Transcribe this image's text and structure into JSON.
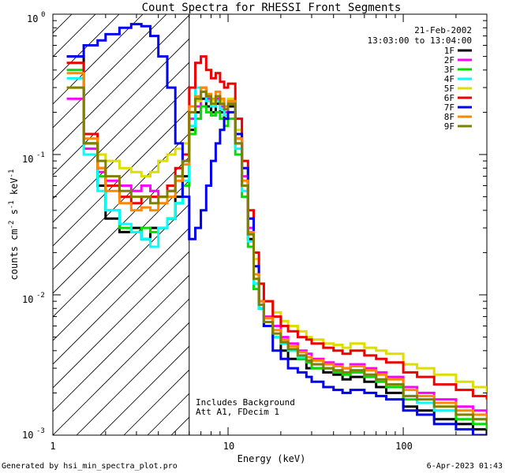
{
  "chart_data": {
    "type": "line",
    "title": "Count Spectra for RHESSI Front Segments",
    "xlabel": "Energy (keV)",
    "ylabel": "counts cm",
    "ylabel_parts": {
      "base": "counts cm",
      "e1": "-2",
      "s": " s",
      "e2": "-1",
      "kev": " keV",
      "e3": "-1"
    },
    "xscale": "log",
    "yscale": "log",
    "xlim": [
      1,
      300
    ],
    "ylim": [
      0.001,
      1
    ],
    "x_tick_labels": [
      "1",
      "10",
      "100"
    ],
    "y_tick_labels": [
      {
        "base": "10",
        "exp": "0"
      },
      {
        "base": "10",
        "exp": "-1"
      },
      {
        "base": "10",
        "exp": "-2"
      },
      {
        "base": "10",
        "exp": "-3"
      }
    ],
    "date": "21-Feb-2002",
    "time_range": "13:03:00 to 13:04:00",
    "legend_placement": "top-right",
    "annotation_lines": [
      "Includes Background",
      "Att A1, FDecim 1"
    ],
    "attenuator_threshold_kev": 6,
    "series": [
      {
        "name": "1F",
        "color": "#000000",
        "x": [
          1.2,
          1.5,
          1.8,
          2.0,
          2.4,
          2.8,
          3.2,
          3.6,
          4.0,
          4.5,
          5.0,
          5.5,
          6.0,
          6.5,
          7.0,
          7.5,
          8.0,
          8.5,
          9.0,
          9.5,
          10,
          11,
          12,
          13,
          14,
          15,
          16,
          18,
          20,
          22,
          25,
          28,
          30,
          35,
          40,
          45,
          50,
          60,
          70,
          80,
          100,
          120,
          150,
          200,
          250,
          300
        ],
        "y": [
          0.5,
          0.12,
          0.06,
          0.035,
          0.028,
          0.03,
          0.025,
          0.03,
          0.03,
          0.035,
          0.05,
          0.07,
          0.15,
          0.2,
          0.25,
          0.22,
          0.2,
          0.23,
          0.2,
          0.18,
          0.22,
          0.12,
          0.06,
          0.025,
          0.012,
          0.008,
          0.006,
          0.005,
          0.004,
          0.0035,
          0.0035,
          0.003,
          0.003,
          0.0028,
          0.0027,
          0.0025,
          0.0026,
          0.0024,
          0.0022,
          0.002,
          0.0016,
          0.0015,
          0.0013,
          0.0012,
          0.0011,
          0.001
        ]
      },
      {
        "name": "2F",
        "color": "#ff00ff",
        "x": [
          1.2,
          1.5,
          1.8,
          2.0,
          2.4,
          2.8,
          3.2,
          3.6,
          4.0,
          4.5,
          5.0,
          5.5,
          6.0,
          6.5,
          7.0,
          7.5,
          8.0,
          8.5,
          9.0,
          9.5,
          10,
          11,
          12,
          13,
          14,
          15,
          16,
          18,
          20,
          22,
          25,
          28,
          30,
          35,
          40,
          45,
          50,
          60,
          70,
          80,
          100,
          120,
          150,
          200,
          250,
          300
        ],
        "y": [
          0.25,
          0.11,
          0.075,
          0.065,
          0.06,
          0.055,
          0.06,
          0.055,
          0.05,
          0.055,
          0.07,
          0.09,
          0.18,
          0.22,
          0.3,
          0.25,
          0.22,
          0.25,
          0.22,
          0.2,
          0.24,
          0.13,
          0.07,
          0.03,
          0.014,
          0.009,
          0.007,
          0.006,
          0.005,
          0.0045,
          0.004,
          0.0038,
          0.0035,
          0.0033,
          0.0032,
          0.003,
          0.0032,
          0.003,
          0.0028,
          0.0026,
          0.0022,
          0.002,
          0.0018,
          0.0016,
          0.0015,
          0.0014
        ]
      },
      {
        "name": "3F",
        "color": "#00dd00",
        "x": [
          1.2,
          1.5,
          1.8,
          2.0,
          2.4,
          2.8,
          3.2,
          3.6,
          4.0,
          4.5,
          5.0,
          5.5,
          6.0,
          6.5,
          7.0,
          7.5,
          8.0,
          8.5,
          9.0,
          9.5,
          10,
          11,
          12,
          13,
          14,
          15,
          16,
          18,
          20,
          22,
          25,
          28,
          30,
          35,
          40,
          45,
          50,
          60,
          70,
          80,
          100,
          120,
          150,
          200,
          250,
          300
        ],
        "y": [
          0.4,
          0.12,
          0.07,
          0.04,
          0.03,
          0.028,
          0.03,
          0.028,
          0.03,
          0.035,
          0.045,
          0.06,
          0.14,
          0.18,
          0.22,
          0.2,
          0.19,
          0.2,
          0.18,
          0.16,
          0.18,
          0.1,
          0.05,
          0.022,
          0.011,
          0.008,
          0.006,
          0.005,
          0.0045,
          0.004,
          0.0035,
          0.0033,
          0.003,
          0.003,
          0.0028,
          0.0027,
          0.0028,
          0.0026,
          0.0024,
          0.0022,
          0.0018,
          0.0017,
          0.0015,
          0.0013,
          0.0012,
          0.0011
        ]
      },
      {
        "name": "4F",
        "color": "#00ffff",
        "x": [
          1.2,
          1.5,
          1.8,
          2.0,
          2.4,
          2.8,
          3.2,
          3.6,
          4.0,
          4.5,
          5.0,
          5.5,
          6.0,
          6.5,
          7.0,
          7.5,
          8.0,
          8.5,
          9.0,
          9.5,
          10,
          11,
          12,
          13,
          14,
          15,
          16,
          18,
          20,
          22,
          25,
          28,
          30,
          35,
          40,
          45,
          50,
          60,
          70,
          80,
          100,
          120,
          150,
          200,
          250,
          300
        ],
        "y": [
          0.35,
          0.1,
          0.055,
          0.04,
          0.032,
          0.028,
          0.025,
          0.022,
          0.03,
          0.035,
          0.045,
          0.065,
          0.16,
          0.3,
          0.28,
          0.24,
          0.22,
          0.24,
          0.21,
          0.19,
          0.2,
          0.11,
          0.055,
          0.024,
          0.012,
          0.008,
          0.006,
          0.005,
          0.0045,
          0.004,
          0.0036,
          0.0034,
          0.0032,
          0.003,
          0.0029,
          0.0028,
          0.0029,
          0.0027,
          0.0025,
          0.0023,
          0.0019,
          0.0017,
          0.0015,
          0.0014,
          0.0013,
          0.0012
        ]
      },
      {
        "name": "5F",
        "color": "#dddd00",
        "x": [
          1.2,
          1.5,
          1.8,
          2.0,
          2.4,
          2.8,
          3.2,
          3.6,
          4.0,
          4.5,
          5.0,
          5.5,
          6.0,
          6.5,
          7.0,
          7.5,
          8.0,
          8.5,
          9.0,
          9.5,
          10,
          11,
          12,
          13,
          14,
          15,
          16,
          18,
          20,
          22,
          25,
          28,
          30,
          35,
          40,
          45,
          50,
          60,
          70,
          80,
          100,
          120,
          150,
          200,
          250,
          300
        ],
        "y": [
          0.3,
          0.14,
          0.1,
          0.09,
          0.08,
          0.075,
          0.07,
          0.075,
          0.09,
          0.1,
          0.11,
          0.12,
          0.2,
          0.24,
          0.28,
          0.26,
          0.24,
          0.26,
          0.24,
          0.22,
          0.25,
          0.15,
          0.08,
          0.035,
          0.018,
          0.012,
          0.009,
          0.0075,
          0.0065,
          0.006,
          0.0055,
          0.005,
          0.0048,
          0.0045,
          0.0044,
          0.0042,
          0.0045,
          0.0042,
          0.004,
          0.0038,
          0.0032,
          0.003,
          0.0027,
          0.0024,
          0.0022,
          0.002
        ]
      },
      {
        "name": "6F",
        "color": "#ee0000",
        "x": [
          1.2,
          1.5,
          1.8,
          2.0,
          2.4,
          2.8,
          3.2,
          3.6,
          4.0,
          4.5,
          5.0,
          5.5,
          6.0,
          6.5,
          7.0,
          7.5,
          8.0,
          8.5,
          9.0,
          9.5,
          10,
          11,
          12,
          13,
          14,
          15,
          16,
          18,
          20,
          22,
          25,
          28,
          30,
          35,
          40,
          45,
          50,
          60,
          70,
          80,
          100,
          120,
          150,
          200,
          250,
          300
        ],
        "y": [
          0.45,
          0.14,
          0.08,
          0.06,
          0.05,
          0.045,
          0.05,
          0.05,
          0.05,
          0.06,
          0.08,
          0.1,
          0.3,
          0.45,
          0.5,
          0.4,
          0.35,
          0.38,
          0.33,
          0.3,
          0.32,
          0.18,
          0.09,
          0.04,
          0.02,
          0.012,
          0.009,
          0.007,
          0.006,
          0.0055,
          0.005,
          0.0048,
          0.0045,
          0.0042,
          0.004,
          0.0038,
          0.004,
          0.0037,
          0.0035,
          0.0033,
          0.0028,
          0.0026,
          0.0023,
          0.0021,
          0.0019,
          0.0018
        ]
      },
      {
        "name": "7F",
        "color": "#0000ee",
        "x": [
          1.2,
          1.5,
          1.8,
          2.0,
          2.4,
          2.8,
          3.2,
          3.6,
          4.0,
          4.5,
          5.0,
          5.5,
          6.0,
          6.5,
          7.0,
          7.5,
          8.0,
          8.5,
          9.0,
          9.5,
          10,
          11,
          12,
          13,
          14,
          15,
          16,
          18,
          20,
          22,
          25,
          28,
          30,
          35,
          40,
          45,
          50,
          60,
          70,
          80,
          100,
          120,
          150,
          200,
          250,
          300
        ],
        "y": [
          0.5,
          0.6,
          0.65,
          0.72,
          0.8,
          0.85,
          0.82,
          0.7,
          0.5,
          0.3,
          0.12,
          0.05,
          0.025,
          0.03,
          0.04,
          0.06,
          0.09,
          0.12,
          0.15,
          0.18,
          0.2,
          0.14,
          0.08,
          0.035,
          0.016,
          0.009,
          0.006,
          0.004,
          0.0035,
          0.003,
          0.0028,
          0.0026,
          0.0024,
          0.0022,
          0.0021,
          0.002,
          0.0021,
          0.002,
          0.0019,
          0.0018,
          0.0015,
          0.0014,
          0.0012,
          0.0011,
          0.001,
          0.001
        ]
      },
      {
        "name": "8F",
        "color": "#ff8800",
        "x": [
          1.2,
          1.5,
          1.8,
          2.0,
          2.4,
          2.8,
          3.2,
          3.6,
          4.0,
          4.5,
          5.0,
          5.5,
          6.0,
          6.5,
          7.0,
          7.5,
          8.0,
          8.5,
          9.0,
          9.5,
          10,
          11,
          12,
          13,
          14,
          15,
          16,
          18,
          20,
          22,
          25,
          28,
          30,
          35,
          40,
          45,
          50,
          60,
          70,
          80,
          100,
          120,
          150,
          200,
          250,
          300
        ],
        "y": [
          0.38,
          0.13,
          0.08,
          0.055,
          0.045,
          0.04,
          0.042,
          0.04,
          0.045,
          0.05,
          0.065,
          0.085,
          0.22,
          0.26,
          0.3,
          0.27,
          0.25,
          0.28,
          0.25,
          0.22,
          0.24,
          0.13,
          0.065,
          0.028,
          0.014,
          0.009,
          0.0068,
          0.0056,
          0.0048,
          0.0043,
          0.0039,
          0.0036,
          0.0034,
          0.0032,
          0.0031,
          0.003,
          0.0031,
          0.0029,
          0.0027,
          0.0025,
          0.0021,
          0.0019,
          0.0017,
          0.0015,
          0.0014,
          0.0013
        ]
      },
      {
        "name": "9F",
        "color": "#808000",
        "x": [
          1.2,
          1.5,
          1.8,
          2.0,
          2.4,
          2.8,
          3.2,
          3.6,
          4.0,
          4.5,
          5.0,
          5.5,
          6.0,
          6.5,
          7.0,
          7.5,
          8.0,
          8.5,
          9.0,
          9.5,
          10,
          11,
          12,
          13,
          14,
          15,
          16,
          18,
          20,
          22,
          25,
          28,
          30,
          35,
          40,
          45,
          50,
          60,
          70,
          80,
          100,
          120,
          150,
          200,
          250,
          300
        ],
        "y": [
          0.3,
          0.12,
          0.09,
          0.07,
          0.055,
          0.05,
          0.05,
          0.045,
          0.05,
          0.055,
          0.07,
          0.09,
          0.2,
          0.25,
          0.28,
          0.26,
          0.23,
          0.26,
          0.23,
          0.21,
          0.23,
          0.12,
          0.06,
          0.027,
          0.013,
          0.0085,
          0.0064,
          0.0053,
          0.0046,
          0.0041,
          0.0037,
          0.0034,
          0.0032,
          0.003,
          0.0029,
          0.0028,
          0.0029,
          0.0027,
          0.0025,
          0.0023,
          0.0019,
          0.0018,
          0.0016,
          0.0014,
          0.0013,
          0.0012
        ]
      }
    ]
  },
  "footer": {
    "left": "Generated by hsi_min_spectra_plot.pro",
    "right": "6-Apr-2023 01:43"
  }
}
